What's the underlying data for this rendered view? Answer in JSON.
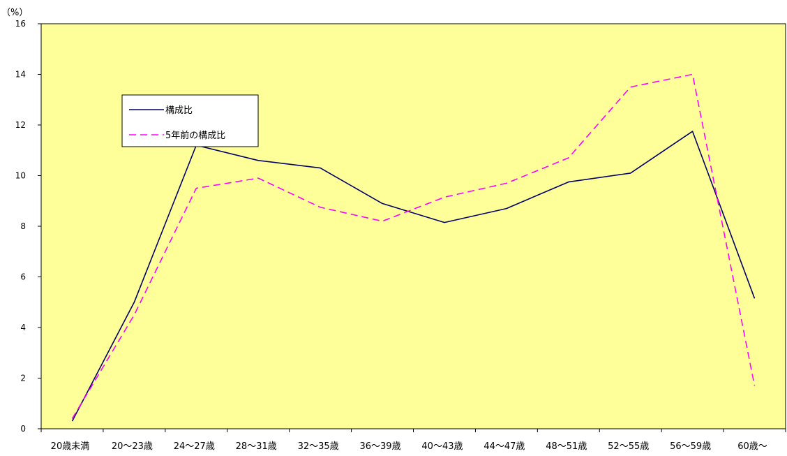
{
  "chart_data": {
    "type": "line",
    "unit_label": "（%）",
    "categories": [
      "20歳未満",
      "20～23歳",
      "24～27歳",
      "28～31歳",
      "32～35歳",
      "36～39歳",
      "40～43歳",
      "44～47歳",
      "48～51歳",
      "52～55歳",
      "56～59歳",
      "60歳～"
    ],
    "series": [
      {
        "name": "構成比",
        "values": [
          0.3,
          5.0,
          11.2,
          10.6,
          10.3,
          8.9,
          8.15,
          8.7,
          9.75,
          10.1,
          11.75,
          5.15
        ],
        "color": "#000066",
        "dash": "solid"
      },
      {
        "name": "5年前の構成比",
        "values": [
          0.4,
          4.5,
          9.5,
          9.9,
          8.75,
          8.2,
          9.15,
          9.7,
          10.7,
          13.5,
          14.0,
          1.7
        ],
        "color": "#ff00ff",
        "dash": "dashed"
      }
    ],
    "ylim": [
      0,
      16
    ],
    "yticks": [
      "0",
      "2",
      "4",
      "6",
      "8",
      "10",
      "12",
      "14",
      "16"
    ],
    "grid": false,
    "legend_position": "upper-left",
    "plot_background": "#ffff99"
  }
}
